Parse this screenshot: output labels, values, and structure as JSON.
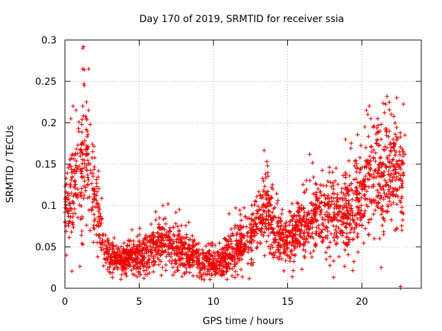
{
  "chart_data": {
    "type": "scatter",
    "title": "Day 170 of 2019, SRMTID for receiver ssia",
    "xlabel": "GPS time / hours",
    "ylabel": "SRMTID / TECUs",
    "xlim": [
      0,
      24
    ],
    "ylim": [
      0,
      0.3
    ],
    "xticks": [
      0,
      5,
      10,
      15,
      20
    ],
    "yticks": [
      0,
      0.05,
      0.1,
      0.15,
      0.2,
      0.25,
      0.3
    ],
    "ytick_labels": [
      "0",
      "0.05",
      "0.1",
      "0.15",
      "0.2",
      "0.25",
      "0.3"
    ],
    "grid": true,
    "marker": "plus",
    "color": "#ee0000",
    "series": [
      {
        "name": "SRMTID",
        "trend_x": [
          0.0,
          0.3,
          0.6,
          0.9,
          1.2,
          1.5,
          1.8,
          2.1,
          2.4,
          2.7,
          3.0,
          3.5,
          4.0,
          4.5,
          5.0,
          5.5,
          6.0,
          6.5,
          7.0,
          7.5,
          8.0,
          8.5,
          9.0,
          9.5,
          10.0,
          10.5,
          11.0,
          11.5,
          12.0,
          12.5,
          13.0,
          13.5,
          14.0,
          14.5,
          15.0,
          15.5,
          16.0,
          16.5,
          17.0,
          17.5,
          18.0,
          18.5,
          19.0,
          19.5,
          20.0,
          20.5,
          21.0,
          21.5,
          22.0,
          22.5,
          22.8
        ],
        "trend_y": [
          0.1,
          0.105,
          0.125,
          0.14,
          0.15,
          0.145,
          0.13,
          0.1,
          0.07,
          0.05,
          0.04,
          0.035,
          0.035,
          0.04,
          0.04,
          0.042,
          0.05,
          0.058,
          0.055,
          0.05,
          0.045,
          0.04,
          0.035,
          0.032,
          0.03,
          0.032,
          0.045,
          0.045,
          0.055,
          0.06,
          0.085,
          0.1,
          0.075,
          0.06,
          0.06,
          0.065,
          0.075,
          0.08,
          0.085,
          0.085,
          0.09,
          0.09,
          0.095,
          0.1,
          0.115,
          0.13,
          0.14,
          0.135,
          0.14,
          0.13,
          0.135
        ],
        "spread_y": [
          0.015,
          0.025,
          0.035,
          0.035,
          0.04,
          0.035,
          0.03,
          0.025,
          0.018,
          0.012,
          0.01,
          0.009,
          0.009,
          0.01,
          0.012,
          0.013,
          0.015,
          0.015,
          0.015,
          0.014,
          0.013,
          0.012,
          0.011,
          0.01,
          0.01,
          0.011,
          0.014,
          0.015,
          0.016,
          0.018,
          0.022,
          0.025,
          0.02,
          0.018,
          0.017,
          0.018,
          0.02,
          0.022,
          0.022,
          0.023,
          0.025,
          0.025,
          0.027,
          0.028,
          0.03,
          0.032,
          0.035,
          0.035,
          0.035,
          0.035,
          0.035
        ],
        "outliers": [
          {
            "x": 1.2,
            "y": 0.29
          },
          {
            "x": 1.25,
            "y": 0.292
          },
          {
            "x": 1.2,
            "y": 0.265
          },
          {
            "x": 1.3,
            "y": 0.264
          },
          {
            "x": 1.6,
            "y": 0.265
          },
          {
            "x": 1.3,
            "y": 0.245
          },
          {
            "x": 1.45,
            "y": 0.225
          },
          {
            "x": 1.2,
            "y": 0.22
          },
          {
            "x": 0.55,
            "y": 0.22
          },
          {
            "x": 0.75,
            "y": 0.215
          },
          {
            "x": 0.4,
            "y": 0.205
          },
          {
            "x": 1.7,
            "y": 0.198
          },
          {
            "x": 1.5,
            "y": 0.19
          },
          {
            "x": 0.1,
            "y": 0.04
          },
          {
            "x": 2.6,
            "y": 0.027
          },
          {
            "x": 3.1,
            "y": 0.03
          },
          {
            "x": 6.6,
            "y": 0.1
          },
          {
            "x": 7.7,
            "y": 0.095
          },
          {
            "x": 11.5,
            "y": 0.097
          },
          {
            "x": 13.6,
            "y": 0.153
          },
          {
            "x": 13.65,
            "y": 0.148
          },
          {
            "x": 14.0,
            "y": 0.12
          },
          {
            "x": 16.5,
            "y": 0.13
          },
          {
            "x": 17.8,
            "y": 0.14
          },
          {
            "x": 18.9,
            "y": 0.18
          },
          {
            "x": 20.3,
            "y": 0.215
          },
          {
            "x": 20.4,
            "y": 0.21
          },
          {
            "x": 20.5,
            "y": 0.22
          },
          {
            "x": 20.6,
            "y": 0.205
          },
          {
            "x": 20.2,
            "y": 0.195
          },
          {
            "x": 21.3,
            "y": 0.198
          },
          {
            "x": 21.1,
            "y": 0.188
          },
          {
            "x": 22.1,
            "y": 0.18
          },
          {
            "x": 22.9,
            "y": 0.185
          },
          {
            "x": 22.8,
            "y": 0.165
          },
          {
            "x": 22.9,
            "y": 0.162
          },
          {
            "x": 21.3,
            "y": 0.025
          },
          {
            "x": 22.6,
            "y": 0.0
          },
          {
            "x": 22.6,
            "y": 0.002
          },
          {
            "x": 21.2,
            "y": 0.06
          },
          {
            "x": 22.7,
            "y": 0.07
          },
          {
            "x": 22.8,
            "y": 0.09
          },
          {
            "x": 16.2,
            "y": 0.045
          },
          {
            "x": 17.6,
            "y": 0.035
          },
          {
            "x": 12.6,
            "y": 0.028
          }
        ]
      }
    ]
  }
}
